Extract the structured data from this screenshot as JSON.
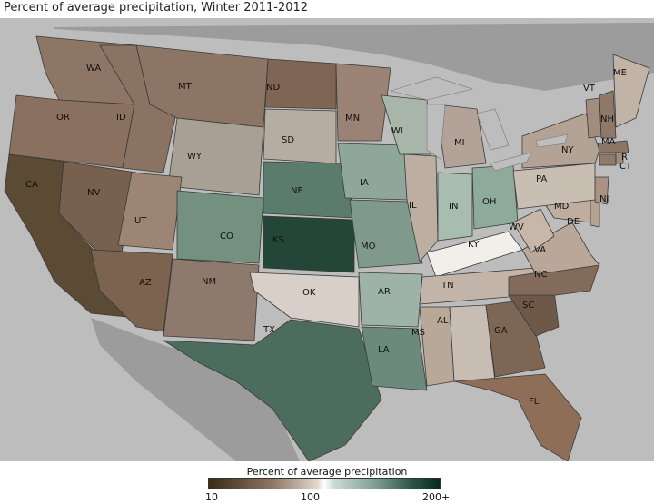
{
  "title": "Percent of average precipitation, Winter 2011-2012",
  "legend": {
    "title": "Percent of average precipitation",
    "ticks": [
      "10",
      "100",
      "200+"
    ],
    "colors": [
      "#3a2a16",
      "#8f7865",
      "#e3d7cc",
      "#ffffff",
      "#cfdcd6",
      "#7f9e92",
      "#052a1c"
    ]
  },
  "states": {
    "WA": "WA",
    "OR": "OR",
    "CA": "CA",
    "ID": "ID",
    "NV": "NV",
    "MT": "MT",
    "WY": "WY",
    "UT": "UT",
    "AZ": "AZ",
    "CO": "CO",
    "NM": "NM",
    "ND": "ND",
    "SD": "SD",
    "NE": "NE",
    "KS": "KS",
    "OK": "OK",
    "TX": "TX",
    "MN": "MN",
    "IA": "IA",
    "MO": "MO",
    "AR": "AR",
    "LA": "LA",
    "WI": "WI",
    "IL": "IL",
    "MI": "MI",
    "IN": "IN",
    "OH": "OH",
    "KY": "KY",
    "TN": "TN",
    "MS": "MS",
    "AL": "AL",
    "GA": "GA",
    "FL": "FL",
    "SC": "SC",
    "NC": "NC",
    "VA": "VA",
    "WV": "WV",
    "MD": "MD",
    "DE": "DE",
    "NJ": "NJ",
    "PA": "PA",
    "NY": "NY",
    "CT": "CT",
    "RI": "RI",
    "MA": "MA",
    "VT": "VT",
    "NH": "NH",
    "ME": "ME"
  }
}
